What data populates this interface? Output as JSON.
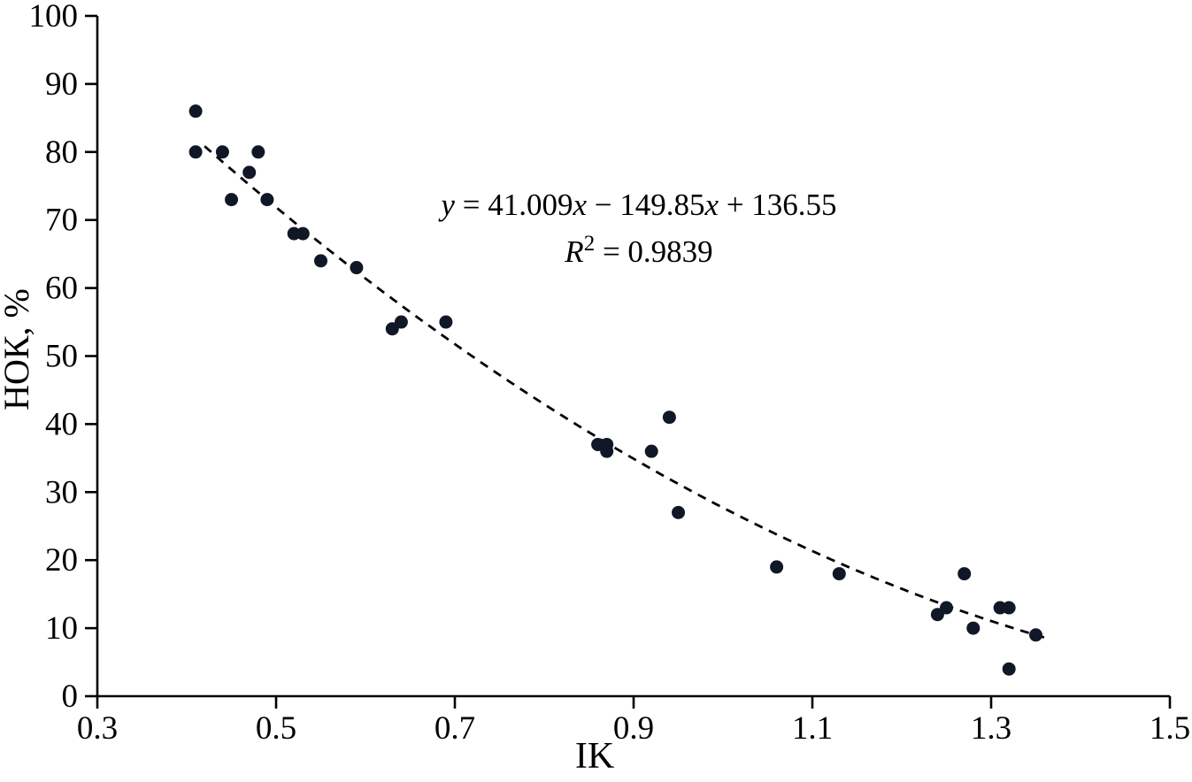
{
  "figure": {
    "background": "#ffffff",
    "axis_color": "#000000",
    "text_color": "#000000"
  },
  "chart_data": {
    "type": "scatter",
    "title": "",
    "xlabel": "IK",
    "ylabel": "НОК, %",
    "xlim": [
      0.3,
      1.5
    ],
    "ylim": [
      0,
      100
    ],
    "x_ticks": [
      0.3,
      0.5,
      0.7,
      0.9,
      1.1,
      1.3,
      1.5
    ],
    "y_ticks": [
      0,
      10,
      20,
      30,
      40,
      50,
      60,
      70,
      80,
      90,
      100
    ],
    "grid": false,
    "legend": "none",
    "point_color": "#101827",
    "points": [
      {
        "x": 0.41,
        "y": 86
      },
      {
        "x": 0.41,
        "y": 80
      },
      {
        "x": 0.44,
        "y": 80
      },
      {
        "x": 0.45,
        "y": 73
      },
      {
        "x": 0.47,
        "y": 77
      },
      {
        "x": 0.48,
        "y": 80
      },
      {
        "x": 0.49,
        "y": 73
      },
      {
        "x": 0.52,
        "y": 68
      },
      {
        "x": 0.53,
        "y": 68
      },
      {
        "x": 0.55,
        "y": 64
      },
      {
        "x": 0.59,
        "y": 63
      },
      {
        "x": 0.63,
        "y": 54
      },
      {
        "x": 0.64,
        "y": 55
      },
      {
        "x": 0.69,
        "y": 55
      },
      {
        "x": 0.86,
        "y": 37
      },
      {
        "x": 0.87,
        "y": 37
      },
      {
        "x": 0.87,
        "y": 36
      },
      {
        "x": 0.92,
        "y": 36
      },
      {
        "x": 0.94,
        "y": 41
      },
      {
        "x": 0.95,
        "y": 27
      },
      {
        "x": 1.06,
        "y": 19
      },
      {
        "x": 1.13,
        "y": 18
      },
      {
        "x": 1.24,
        "y": 12
      },
      {
        "x": 1.25,
        "y": 13
      },
      {
        "x": 1.27,
        "y": 18
      },
      {
        "x": 1.28,
        "y": 10
      },
      {
        "x": 1.31,
        "y": 13
      },
      {
        "x": 1.32,
        "y": 13
      },
      {
        "x": 1.32,
        "y": 4
      },
      {
        "x": 1.35,
        "y": 9
      }
    ],
    "trendline": {
      "style": "dashed",
      "color": "#000000",
      "equation_text": "y = 41.009x − 149.85x + 136.55",
      "r_squared_text": "R2 = 0.9839",
      "coefficients": {
        "a": 41.009,
        "b": -149.85,
        "c": 136.55
      },
      "domain": [
        0.42,
        1.36
      ]
    },
    "annotation": {
      "line1_segments": [
        {
          "text": "y",
          "italic": true
        },
        {
          "text": " = 41.009",
          "italic": false
        },
        {
          "text": "x",
          "italic": true
        },
        {
          "text": " − 149.85",
          "italic": false
        },
        {
          "text": "x",
          "italic": true
        },
        {
          "text": " + 136.55",
          "italic": false
        }
      ],
      "line2_segments": [
        {
          "text": "R",
          "italic": true
        },
        {
          "text": "2",
          "italic": false,
          "sup": true
        },
        {
          "text": " = 0.9839",
          "italic": false
        }
      ]
    }
  }
}
